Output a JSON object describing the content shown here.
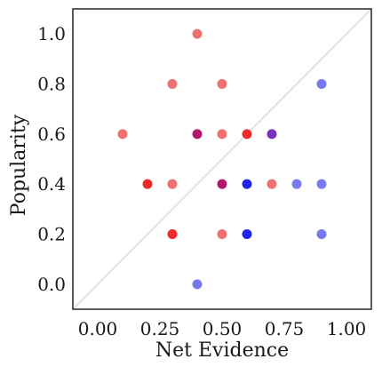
{
  "chart_data": {
    "type": "scatter",
    "title": "",
    "xlabel": "Net Evidence",
    "ylabel": "Popularity",
    "xlim": [
      -0.1,
      1.1
    ],
    "ylim": [
      -0.1,
      1.1
    ],
    "xticks": [
      0.0,
      0.25,
      0.5,
      0.75,
      1.0
    ],
    "xtick_labels": [
      "0.00",
      "0.25",
      "0.50",
      "0.75",
      "1.00"
    ],
    "yticks": [
      0.0,
      0.2,
      0.4,
      0.6,
      0.8,
      1.0
    ],
    "ytick_labels": [
      "0.0",
      "0.2",
      "0.4",
      "0.6",
      "0.8",
      "1.0"
    ],
    "grid": false,
    "reference_line": {
      "from": [
        -0.1,
        -0.1
      ],
      "to": [
        1.1,
        1.1
      ],
      "color": "#e6e6e6"
    },
    "points": [
      {
        "x": 0.4,
        "y": 1.0,
        "color": "#ee7070"
      },
      {
        "x": 0.3,
        "y": 0.8,
        "color": "#ee7070"
      },
      {
        "x": 0.5,
        "y": 0.8,
        "color": "#ee7070"
      },
      {
        "x": 0.9,
        "y": 0.8,
        "color": "#7878ee"
      },
      {
        "x": 0.1,
        "y": 0.6,
        "color": "#ee7070"
      },
      {
        "x": 0.4,
        "y": 0.6,
        "color": "#b0186c"
      },
      {
        "x": 0.5,
        "y": 0.6,
        "color": "#ee7070"
      },
      {
        "x": 0.6,
        "y": 0.6,
        "color": "#ee2a2a"
      },
      {
        "x": 0.7,
        "y": 0.6,
        "color": "#7a30c0"
      },
      {
        "x": 0.2,
        "y": 0.4,
        "color": "#ee2a2a"
      },
      {
        "x": 0.3,
        "y": 0.4,
        "color": "#ee7070"
      },
      {
        "x": 0.5,
        "y": 0.4,
        "color": "#b0186c"
      },
      {
        "x": 0.6,
        "y": 0.4,
        "color": "#2222ee"
      },
      {
        "x": 0.7,
        "y": 0.4,
        "color": "#ee7070"
      },
      {
        "x": 0.8,
        "y": 0.4,
        "color": "#7878ee"
      },
      {
        "x": 0.9,
        "y": 0.4,
        "color": "#7878ee"
      },
      {
        "x": 0.3,
        "y": 0.2,
        "color": "#ee2a2a"
      },
      {
        "x": 0.5,
        "y": 0.2,
        "color": "#ee7070"
      },
      {
        "x": 0.6,
        "y": 0.2,
        "color": "#2222ee"
      },
      {
        "x": 0.9,
        "y": 0.2,
        "color": "#7878ee"
      },
      {
        "x": 0.4,
        "y": 0.0,
        "color": "#7878ee"
      }
    ]
  }
}
